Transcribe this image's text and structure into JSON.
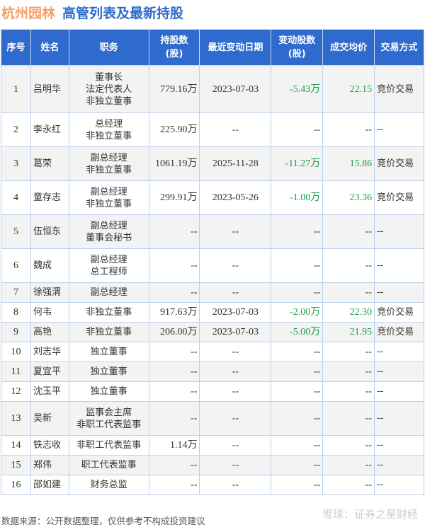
{
  "title": {
    "company": "杭州园林",
    "subtitle": "高管列表及最新持股"
  },
  "headers": [
    "序号",
    "姓名",
    "职务",
    "持股数\n(股)",
    "最近变动日期",
    "变动股数\n(股)",
    "成交均价",
    "交易方式"
  ],
  "rows": [
    {
      "no": "1",
      "name": "吕明华",
      "role": [
        "董事长",
        "法定代表人",
        "非独立董事"
      ],
      "shares": "779.16万",
      "date": "2023-07-03",
      "change": "-5.43万",
      "price": "22.15",
      "method": "竞价交易"
    },
    {
      "no": "2",
      "name": "李永红",
      "role": [
        "总经理",
        "非独立董事"
      ],
      "shares": "225.90万",
      "date": "--",
      "change": "--",
      "price": "--",
      "method": "--"
    },
    {
      "no": "3",
      "name": "葛荣",
      "role": [
        "副总经理",
        "非独立董事"
      ],
      "shares": "1061.19万",
      "date": "2025-11-28",
      "change": "-11.27万",
      "price": "15.86",
      "method": "竞价交易"
    },
    {
      "no": "4",
      "name": "童存志",
      "role": [
        "副总经理",
        "非独立董事"
      ],
      "shares": "299.91万",
      "date": "2023-05-26",
      "change": "-1.00万",
      "price": "23.36",
      "method": "竞价交易"
    },
    {
      "no": "5",
      "name": "伍恒东",
      "role": [
        "副总经理",
        "董事会秘书"
      ],
      "shares": "--",
      "date": "--",
      "change": "--",
      "price": "--",
      "method": "--"
    },
    {
      "no": "6",
      "name": "魏成",
      "role": [
        "副总经理",
        "总工程师"
      ],
      "shares": "--",
      "date": "--",
      "change": "--",
      "price": "--",
      "method": "--"
    },
    {
      "no": "7",
      "name": "徐强渭",
      "role": [
        "副总经理"
      ],
      "shares": "--",
      "date": "--",
      "change": "--",
      "price": "--",
      "method": "--"
    },
    {
      "no": "8",
      "name": "何韦",
      "role": [
        "非独立董事"
      ],
      "shares": "917.63万",
      "date": "2023-07-03",
      "change": "-2.00万",
      "price": "22.30",
      "method": "竞价交易"
    },
    {
      "no": "9",
      "name": "高艳",
      "role": [
        "非独立董事"
      ],
      "shares": "206.00万",
      "date": "2023-07-03",
      "change": "-5.00万",
      "price": "21.95",
      "method": "竞价交易"
    },
    {
      "no": "10",
      "name": "刘志华",
      "role": [
        "独立董事"
      ],
      "shares": "--",
      "date": "--",
      "change": "--",
      "price": "--",
      "method": "--"
    },
    {
      "no": "11",
      "name": "夏宜平",
      "role": [
        "独立董事"
      ],
      "shares": "--",
      "date": "--",
      "change": "--",
      "price": "--",
      "method": "--"
    },
    {
      "no": "12",
      "name": "沈玉平",
      "role": [
        "独立董事"
      ],
      "shares": "--",
      "date": "--",
      "change": "--",
      "price": "--",
      "method": "--"
    },
    {
      "no": "13",
      "name": "吴新",
      "role": [
        "监事会主席",
        "非职工代表监事"
      ],
      "shares": "--",
      "date": "--",
      "change": "--",
      "price": "--",
      "method": "--"
    },
    {
      "no": "14",
      "name": "铁志收",
      "role": [
        "非职工代表监事"
      ],
      "shares": "1.14万",
      "date": "--",
      "change": "--",
      "price": "--",
      "method": "--"
    },
    {
      "no": "15",
      "name": "郑伟",
      "role": [
        "职工代表监事"
      ],
      "shares": "--",
      "date": "--",
      "change": "--",
      "price": "--",
      "method": "--"
    },
    {
      "no": "16",
      "name": "邵如建",
      "role": [
        "财务总监"
      ],
      "shares": "--",
      "date": "--",
      "change": "--",
      "price": "--",
      "method": "--"
    }
  ],
  "footer": "数据来源：公开数据整理，仅供参考不构成投资建议",
  "watermark": "雪球：证券之星财经",
  "colors": {
    "header": "#2f6bcf",
    "positive": "#1b9e47",
    "company": "#f5a066"
  }
}
